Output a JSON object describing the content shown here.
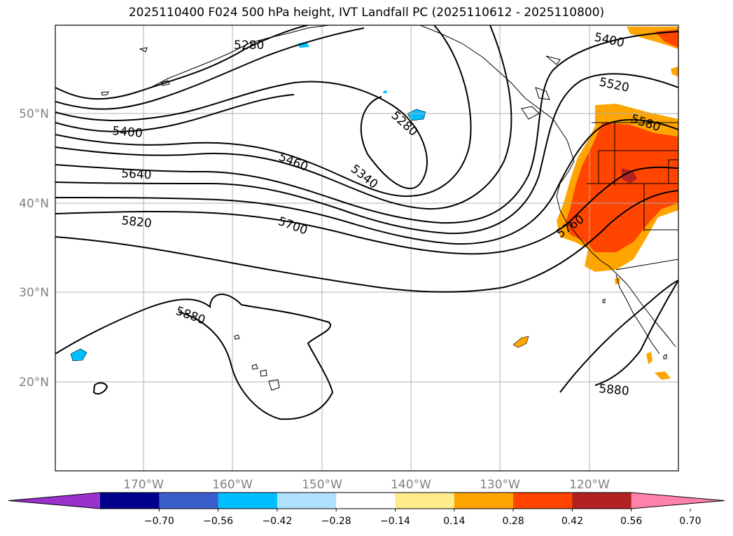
{
  "title": "2025110400 F024 500 hPa height, IVT Landfall PC (2025110612 - 2025110800)",
  "lat_labels": [
    "50°N",
    "40°N",
    "30°N",
    "20°N"
  ],
  "lon_labels": [
    "170°W",
    "160°W",
    "150°W",
    "140°W",
    "130°W",
    "120°W"
  ],
  "contour_labels": [
    "5280",
    "5400",
    "5520",
    "5580",
    "5280",
    "5400",
    "5460",
    "5340",
    "5640",
    "5700",
    "5820",
    "5760",
    "5880",
    "5880"
  ],
  "colorbar": {
    "ticks": [
      "−0.70",
      "−0.56",
      "−0.42",
      "−0.28",
      "−0.14",
      "0.14",
      "0.28",
      "0.42",
      "0.56",
      "0.70"
    ],
    "colors": [
      "#9932cc",
      "#00008b",
      "#3a5fcd",
      "#00bfff",
      "#b0e2ff",
      "#ffffff",
      "#ffec8b",
      "#ffa500",
      "#ff4500",
      "#b22222",
      "#ff82ab"
    ]
  }
}
